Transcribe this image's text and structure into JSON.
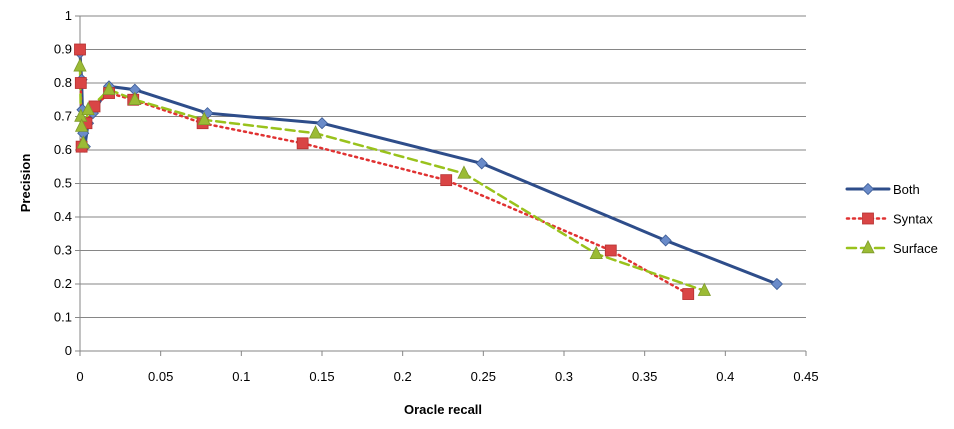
{
  "chart_data": {
    "type": "line",
    "title": "",
    "xlabel": "Oracle recall",
    "ylabel": "Precision",
    "xlim": [
      0,
      0.45
    ],
    "ylim": [
      0,
      1
    ],
    "x_ticks": [
      "0",
      "0.05",
      "0.1",
      "0.15",
      "0.2",
      "0.25",
      "0.3",
      "0.35",
      "0.4",
      "0.45"
    ],
    "y_ticks": [
      "0",
      "0.1",
      "0.2",
      "0.3",
      "0.4",
      "0.5",
      "0.6",
      "0.7",
      "0.8",
      "0.9",
      "1"
    ],
    "grid": "horizontal",
    "legend_position": "right",
    "series": [
      {
        "name": "Both",
        "color": "#2E4D8A",
        "line_style": "solid",
        "marker": "diamond",
        "marker_color": "#6A8BC9",
        "points": [
          [
            0.0,
            0.89
          ],
          [
            0.001,
            0.81
          ],
          [
            0.0015,
            0.72
          ],
          [
            0.002,
            0.65
          ],
          [
            0.003,
            0.61
          ],
          [
            0.005,
            0.68
          ],
          [
            0.008,
            0.71
          ],
          [
            0.018,
            0.79
          ],
          [
            0.034,
            0.78
          ],
          [
            0.079,
            0.71
          ],
          [
            0.15,
            0.68
          ],
          [
            0.249,
            0.56
          ],
          [
            0.363,
            0.33
          ],
          [
            0.432,
            0.2
          ]
        ]
      },
      {
        "name": "Syntax",
        "color": "#E03232",
        "line_style": "dotted",
        "marker": "square",
        "marker_color": "#D94545",
        "points": [
          [
            0.0,
            0.9
          ],
          [
            0.0005,
            0.8
          ],
          [
            0.001,
            0.61
          ],
          [
            0.004,
            0.68
          ],
          [
            0.009,
            0.73
          ],
          [
            0.018,
            0.77
          ],
          [
            0.033,
            0.75
          ],
          [
            0.076,
            0.68
          ],
          [
            0.138,
            0.62
          ],
          [
            0.227,
            0.51
          ],
          [
            0.329,
            0.3
          ],
          [
            0.377,
            0.17
          ]
        ]
      },
      {
        "name": "Surface",
        "color": "#99C21C",
        "line_style": "dashed",
        "marker": "triangle",
        "marker_color": "#9BBB35",
        "points": [
          [
            0.0,
            0.85
          ],
          [
            0.0005,
            0.7
          ],
          [
            0.001,
            0.67
          ],
          [
            0.002,
            0.62
          ],
          [
            0.005,
            0.72
          ],
          [
            0.018,
            0.78
          ],
          [
            0.034,
            0.75
          ],
          [
            0.077,
            0.69
          ],
          [
            0.146,
            0.65
          ],
          [
            0.238,
            0.53
          ],
          [
            0.32,
            0.29
          ],
          [
            0.387,
            0.18
          ]
        ]
      }
    ]
  }
}
